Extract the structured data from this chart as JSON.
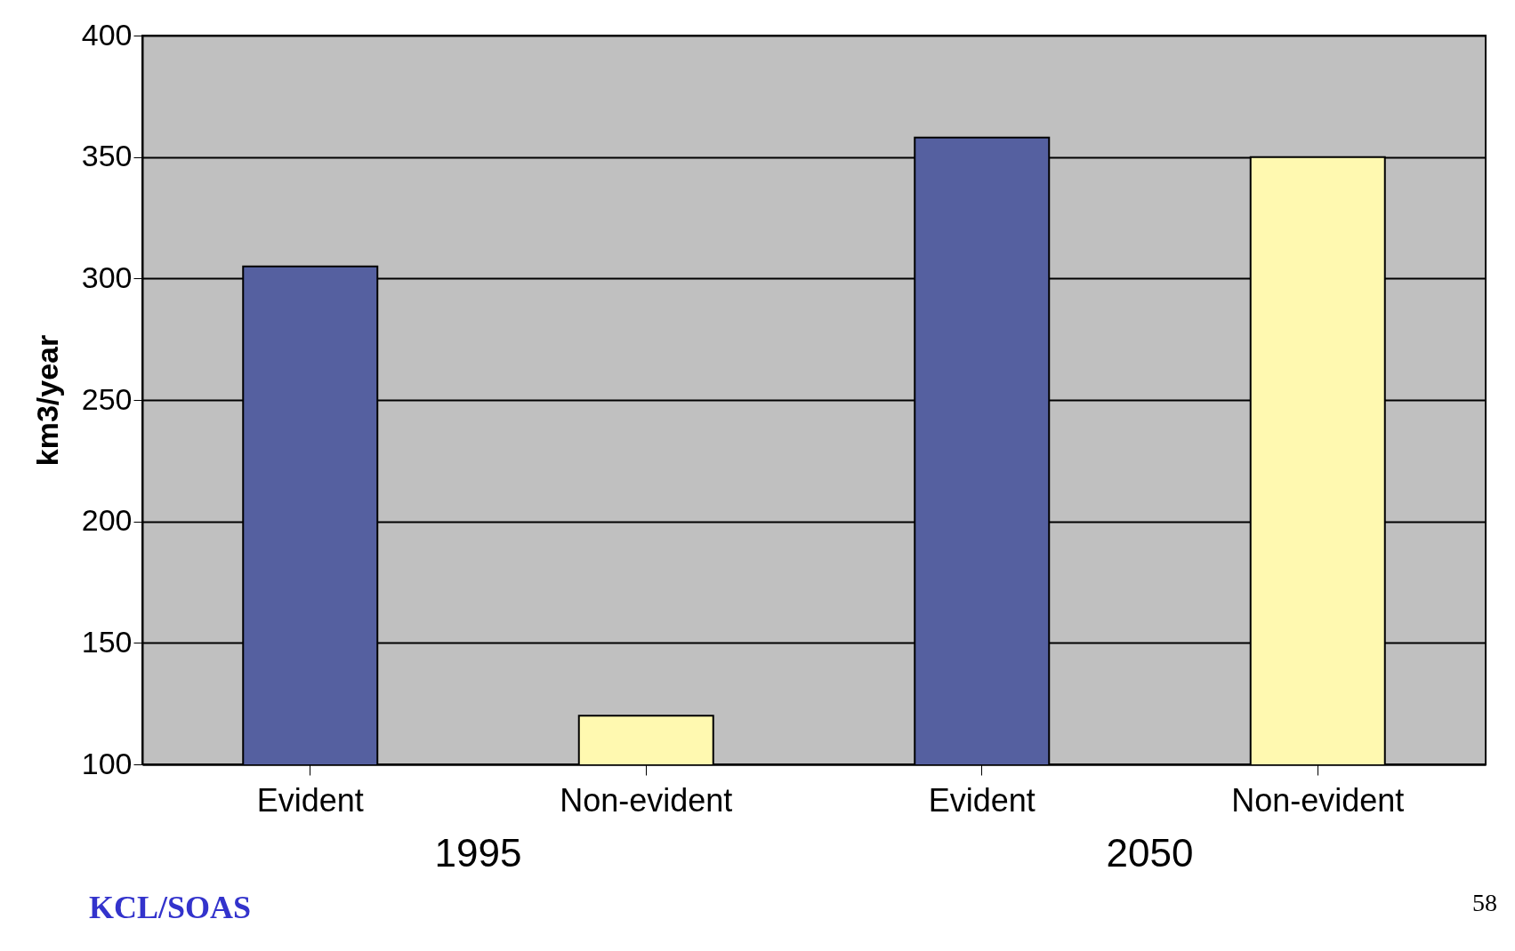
{
  "chart_data": {
    "type": "bar",
    "ylabel": "km3/year",
    "categories": [
      "Evident",
      "Non-evident",
      "Evident",
      "Non-evident"
    ],
    "values": [
      305,
      120,
      358,
      350
    ],
    "colors": [
      "#5560a0",
      "#fff9b0",
      "#5560a0",
      "#fff9b0"
    ],
    "ylim": [
      100,
      400
    ],
    "yticks": [
      100,
      150,
      200,
      250,
      300,
      350,
      400
    ],
    "grid": "y",
    "annotations": [
      "1995",
      "2050",
      "KCL/SOAS",
      "58"
    ]
  }
}
